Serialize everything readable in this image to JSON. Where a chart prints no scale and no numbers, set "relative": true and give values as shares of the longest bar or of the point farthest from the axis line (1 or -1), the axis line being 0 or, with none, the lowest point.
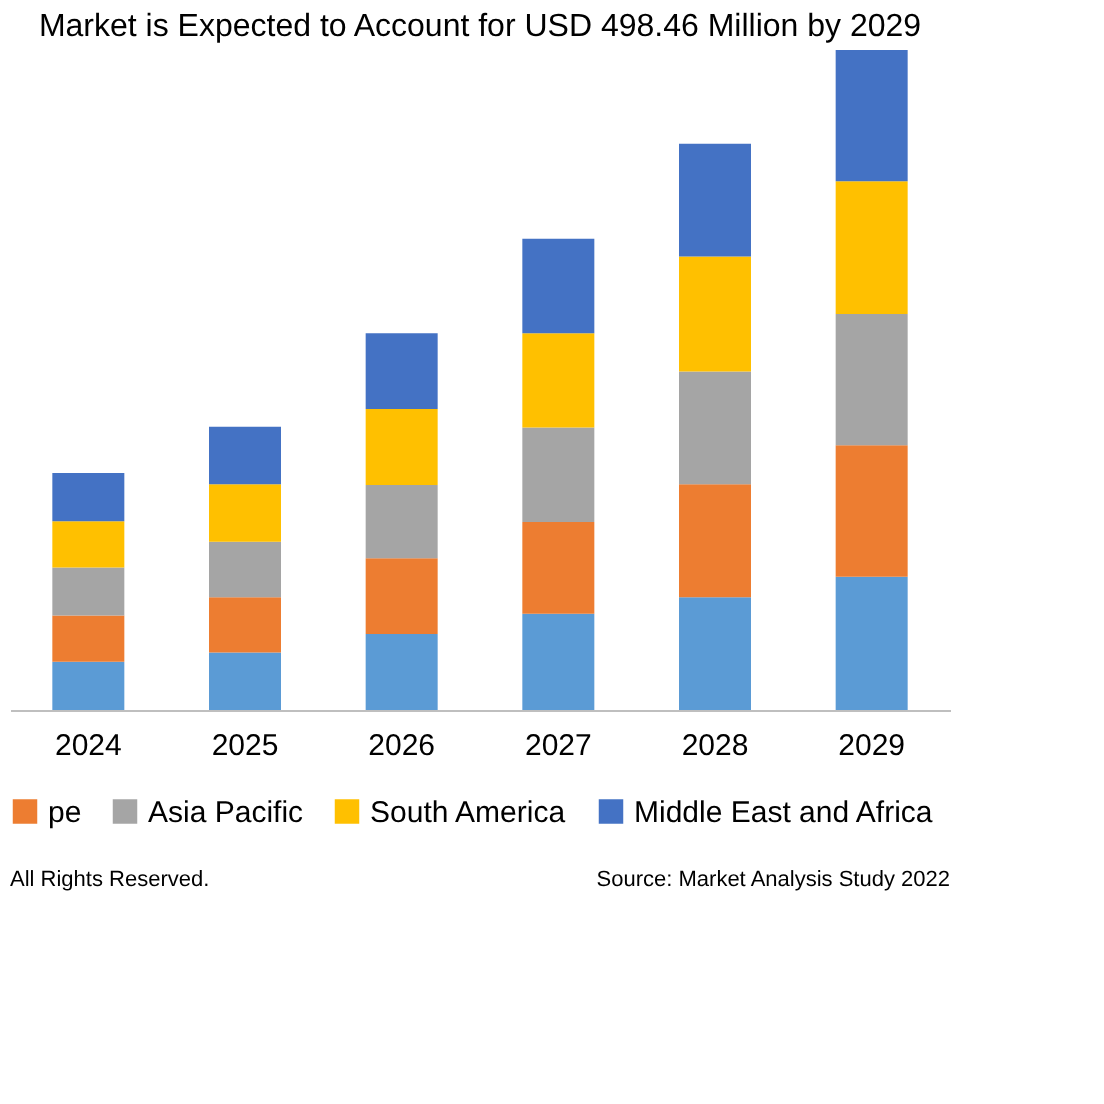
{
  "chart_data": {
    "type": "bar",
    "stacked": true,
    "relative": true,
    "title": "Market is Expected to Account for USD 498.46 Million by 2029",
    "categories": [
      "2024",
      "2025",
      "2026",
      "2027",
      "2028",
      "2029"
    ],
    "series": [
      {
        "color": "#5b9bd5",
        "values": [
          0.073,
          0.087,
          0.115,
          0.146,
          0.171,
          0.202
        ]
      },
      {
        "name": "pe",
        "color": "#ed7d31",
        "values": [
          0.07,
          0.084,
          0.115,
          0.139,
          0.171,
          0.199
        ]
      },
      {
        "name": "Asia Pacific",
        "color": "#a5a5a5",
        "values": [
          0.073,
          0.084,
          0.111,
          0.143,
          0.171,
          0.199
        ]
      },
      {
        "name": "South America",
        "color": "#ffc000",
        "values": [
          0.07,
          0.087,
          0.115,
          0.143,
          0.174,
          0.201
        ]
      },
      {
        "name": "Middle East and Africa",
        "color": "#4472c4",
        "values": [
          0.073,
          0.087,
          0.115,
          0.143,
          0.171,
          0.199
        ]
      }
    ],
    "legend": "bottom",
    "annotations": [
      "All Rights Reserved.",
      "Source: Market Analysis Study 2022"
    ]
  }
}
